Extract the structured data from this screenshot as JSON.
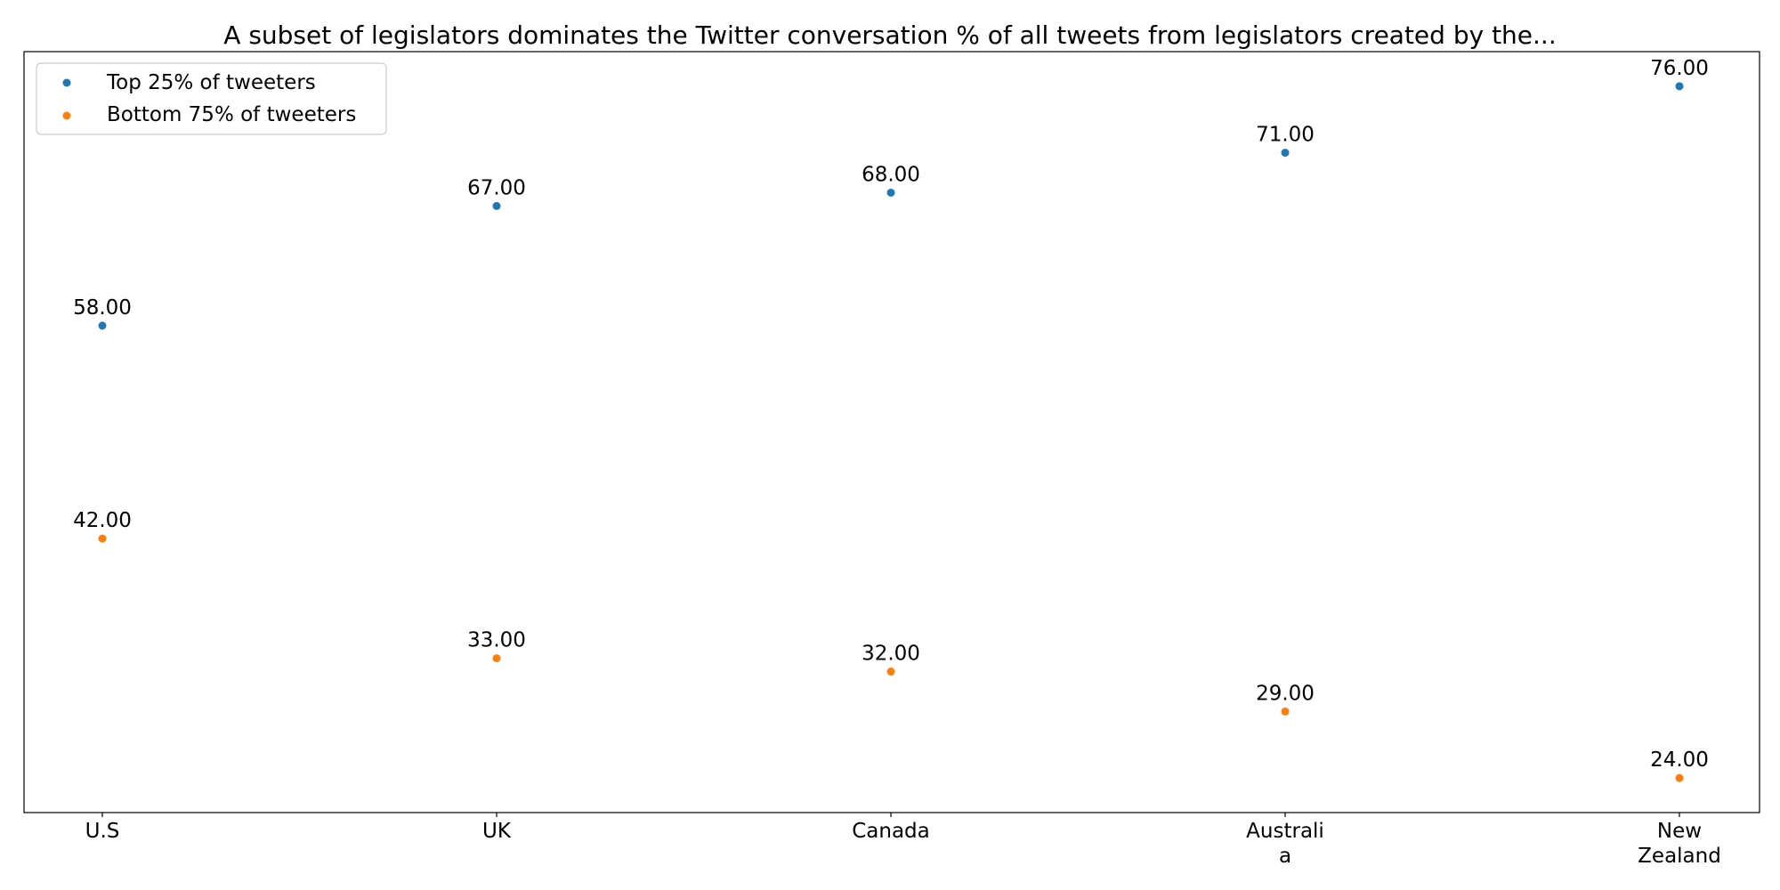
{
  "chart_data": {
    "type": "scatter",
    "title": "A subset of legislators dominates the Twitter conversation % of all tweets from legislators created by the...",
    "xlabel": "",
    "ylabel": "",
    "categories": [
      "U.S",
      "UK",
      "Canada",
      "Australia",
      "New Zealand"
    ],
    "category_tick_lines": [
      [
        "U.S"
      ],
      [
        "UK"
      ],
      [
        "Canada"
      ],
      [
        "Australi",
        "a"
      ],
      [
        "New",
        "Zealand"
      ]
    ],
    "series": [
      {
        "name": "Top 25% of tweeters",
        "color": "#1f77b4",
        "values": [
          58,
          67,
          68,
          71,
          76
        ]
      },
      {
        "name": "Bottom 75% of tweeters",
        "color": "#ff7f0e",
        "values": [
          42,
          33,
          32,
          29,
          24
        ]
      }
    ],
    "value_labels": [
      [
        "58.00",
        "67.00",
        "68.00",
        "71.00",
        "76.00"
      ],
      [
        "42.00",
        "33.00",
        "32.00",
        "29.00",
        "24.00"
      ]
    ],
    "ylim": [
      21.4,
      78.6
    ],
    "y_ticks_visible": false,
    "grid": false,
    "legend_position": "top-left"
  }
}
